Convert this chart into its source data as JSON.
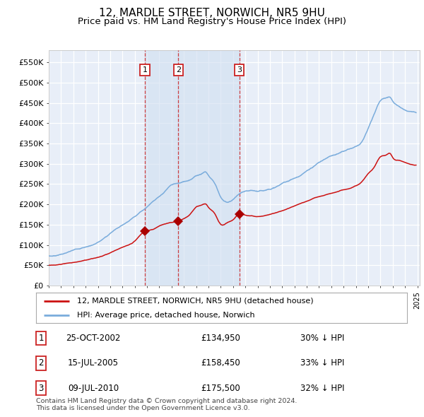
{
  "title": "12, MARDLE STREET, NORWICH, NR5 9HU",
  "subtitle": "Price paid vs. HM Land Registry's House Price Index (HPI)",
  "title_fontsize": 11,
  "subtitle_fontsize": 9.5,
  "background_color": "#ffffff",
  "plot_bg_color": "#e8eef8",
  "grid_color": "#ffffff",
  "ylim": [
    0,
    580000
  ],
  "yticks": [
    0,
    50000,
    100000,
    150000,
    200000,
    250000,
    300000,
    350000,
    400000,
    450000,
    500000,
    550000
  ],
  "ytick_labels": [
    "£0",
    "£50K",
    "£100K",
    "£150K",
    "£200K",
    "£250K",
    "£300K",
    "£350K",
    "£400K",
    "£450K",
    "£500K",
    "£550K"
  ],
  "hpi_color": "#7aacdc",
  "property_color": "#cc1111",
  "sale_marker_color": "#aa0000",
  "sale1_date": 2002.82,
  "sale1_price": 134950,
  "sale2_date": 2005.54,
  "sale2_price": 158450,
  "sale3_date": 2010.52,
  "sale3_price": 175500,
  "legend_line1": "12, MARDLE STREET, NORWICH, NR5 9HU (detached house)",
  "legend_line2": "HPI: Average price, detached house, Norwich",
  "table_rows": [
    {
      "num": "1",
      "date": "25-OCT-2002",
      "price": "£134,950",
      "pct": "30% ↓ HPI"
    },
    {
      "num": "2",
      "date": "15-JUL-2005",
      "price": "£158,450",
      "pct": "33% ↓ HPI"
    },
    {
      "num": "3",
      "date": "09-JUL-2010",
      "price": "£175,500",
      "pct": "32% ↓ HPI"
    }
  ],
  "footer": "Contains HM Land Registry data © Crown copyright and database right 2024.\nThis data is licensed under the Open Government Licence v3.0.",
  "vline_color": "#cc2222"
}
